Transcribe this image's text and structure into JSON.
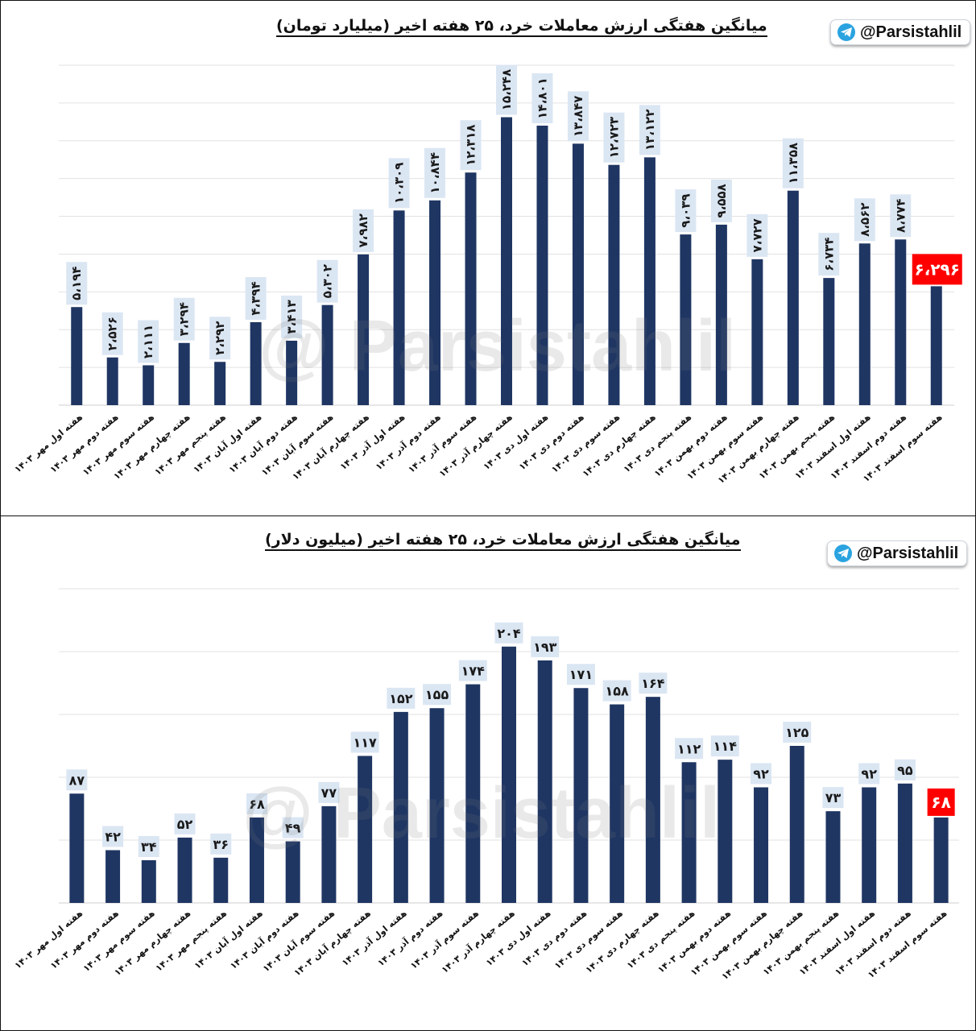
{
  "branding": {
    "channel": "@Parsistahlil",
    "watermark": "@ Parsistahlil",
    "icon": "telegram-icon"
  },
  "colors": {
    "bar": "#1f3663",
    "highlight": "#ff0000",
    "label_bg": "#dbe6f3"
  },
  "chart_data": [
    {
      "type": "bar",
      "title": "میانگین هفتگی ارزش معاملات خرد، ۲۵ هفته اخیر (میلیارد تومان)",
      "categories": [
        "هفته اول مهر ۱۴۰۳",
        "هفته دوم مهر ۱۴۰۳",
        "هفته سوم مهر ۱۴۰۳",
        "هفته چهارم مهر ۱۴۰۳",
        "هفته پنجم مهر ۱۴۰۳",
        "هفته اول آبان ۱۴۰۳",
        "هفته دوم آبان ۱۴۰۳",
        "هفته سوم آبان ۱۴۰۳",
        "هفته چهارم آبان ۱۴۰۳",
        "هفته اول آذر ۱۴۰۳",
        "هفته دوم آذر ۱۴۰۳",
        "هفته سوم آذر ۱۴۰۳",
        "هفته چهارم آذر ۱۴۰۳",
        "هفته اول دی ۱۴۰۳",
        "هفته دوم دی ۱۴۰۳",
        "هفته سوم دی ۱۴۰۳",
        "هفته چهارم دی ۱۴۰۳",
        "هفته پنجم دی ۱۴۰۳",
        "هفته دوم بهمن ۱۴۰۳",
        "هفته سوم بهمن ۱۴۰۳",
        "هفته چهارم بهمن ۱۴۰۳",
        "هفته پنجم بهمن ۱۴۰۳",
        "هفته اول اسفند ۱۴۰۳",
        "هفته دوم اسفند ۱۴۰۳",
        "هفته سوم اسفند ۱۴۰۳"
      ],
      "values": [
        5194,
        2526,
        2111,
        3294,
        2292,
        4394,
        3413,
        5302,
        7982,
        10309,
        10844,
        12318,
        15248,
        14801,
        13847,
        12723,
        13122,
        9039,
        9558,
        7727,
        11358,
        6734,
        8562,
        8774,
        6296
      ],
      "value_labels": [
        "۵،۱۹۴",
        "۲،۵۲۶",
        "۲،۱۱۱",
        "۳،۲۹۴",
        "۲،۲۹۲",
        "۴،۳۹۴",
        "۳،۴۱۳",
        "۵،۳۰۲",
        "۷،۹۸۲",
        "۱۰،۳۰۹",
        "۱۰،۸۴۴",
        "۱۲،۳۱۸",
        "۱۵،۲۴۸",
        "۱۴،۸۰۱",
        "۱۳،۸۴۷",
        "۱۲،۷۲۳",
        "۱۳،۱۲۲",
        "۹،۰۳۹",
        "۹،۵۵۸",
        "۷،۷۲۷",
        "۱۱،۳۵۸",
        "۶،۷۳۴",
        "۸،۵۶۲",
        "۸،۷۷۴",
        "۶،۲۹۶"
      ],
      "highlight_index": 24,
      "ylim": [
        0,
        18000
      ],
      "grid": true,
      "xlabel": "",
      "ylabel": ""
    },
    {
      "type": "bar",
      "title": "میانگین هفتگی ارزش معاملات خرد، ۲۵ هفته اخیر (میلیون دلار)",
      "categories": [
        "هفته اول مهر ۱۴۰۳",
        "هفته دوم مهر ۱۴۰۳",
        "هفته سوم مهر ۱۴۰۳",
        "هفته چهارم مهر ۱۴۰۳",
        "هفته پنجم مهر ۱۴۰۳",
        "هفته اول آبان ۱۴۰۳",
        "هفته دوم آبان ۱۴۰۳",
        "هفته سوم آبان ۱۴۰۳",
        "هفته چهارم آبان ۱۴۰۳",
        "هفته اول آذر ۱۴۰۳",
        "هفته دوم آذر ۱۴۰۳",
        "هفته سوم آذر ۱۴۰۳",
        "هفته چهارم آذر ۱۴۰۳",
        "هفته اول دی ۱۴۰۳",
        "هفته دوم دی ۱۴۰۳",
        "هفته سوم دی ۱۴۰۳",
        "هفته چهارم دی ۱۴۰۳",
        "هفته پنجم دی ۱۴۰۳",
        "هفته دوم بهمن ۱۴۰۳",
        "هفته سوم بهمن ۱۴۰۳",
        "هفته چهارم بهمن ۱۴۰۳",
        "هفته پنجم بهمن ۱۴۰۳",
        "هفته اول اسفند ۱۴۰۳",
        "هفته دوم اسفند ۱۴۰۳",
        "هفته سوم اسفند ۱۴۰۳"
      ],
      "values": [
        87,
        42,
        34,
        52,
        36,
        68,
        49,
        77,
        117,
        152,
        155,
        174,
        204,
        193,
        171,
        158,
        164,
        112,
        114,
        92,
        125,
        73,
        92,
        95,
        68
      ],
      "value_labels": [
        "۸۷",
        "۴۲",
        "۳۴",
        "۵۲",
        "۳۶",
        "۶۸",
        "۴۹",
        "۷۷",
        "۱۱۷",
        "۱۵۲",
        "۱۵۵",
        "۱۷۴",
        "۲۰۴",
        "۱۹۳",
        "۱۷۱",
        "۱۵۸",
        "۱۶۴",
        "۱۱۲",
        "۱۱۴",
        "۹۲",
        "۱۲۵",
        "۷۳",
        "۹۲",
        "۹۵",
        "۶۸"
      ],
      "highlight_index": 24,
      "ylim": [
        0,
        250
      ],
      "grid": true,
      "xlabel": "",
      "ylabel": ""
    }
  ]
}
